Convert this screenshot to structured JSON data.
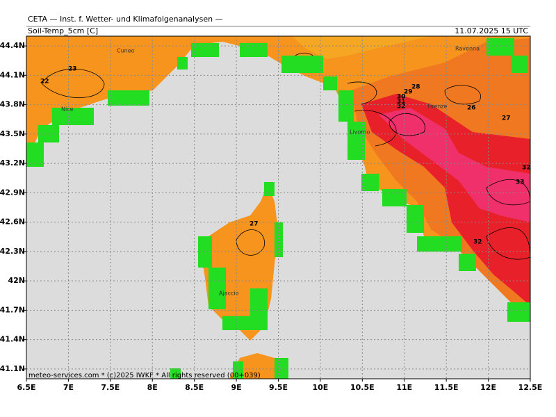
{
  "header": {
    "institute": "CETA — Inst. f. Wetter- und Klimafolgenanalysen —",
    "field": "Soil-Temp_5cm [C]",
    "valid_time": "11.07.2025 15 UTC"
  },
  "map": {
    "xlim": [
      6.5,
      12.5
    ],
    "ylim": [
      41.0,
      44.5
    ],
    "x_ticks": [
      {
        "value": 6.5,
        "label": "6.5E"
      },
      {
        "value": 7,
        "label": "7E"
      },
      {
        "value": 7.5,
        "label": "7.5E"
      },
      {
        "value": 8,
        "label": "8E"
      },
      {
        "value": 8.5,
        "label": "8.5E"
      },
      {
        "value": 9,
        "label": "9E"
      },
      {
        "value": 9.5,
        "label": "9.5E"
      },
      {
        "value": 10,
        "label": "10E"
      },
      {
        "value": 10.5,
        "label": "10.5E"
      },
      {
        "value": 11,
        "label": "11E"
      },
      {
        "value": 11.5,
        "label": "11.5E"
      },
      {
        "value": 12,
        "label": "12E"
      },
      {
        "value": 12.5,
        "label": "12.5E"
      }
    ],
    "y_ticks": [
      {
        "value": 41.1,
        "label": "41.1N"
      },
      {
        "value": 41.4,
        "label": "41.4N"
      },
      {
        "value": 41.7,
        "label": "41.7N"
      },
      {
        "value": 42,
        "label": "42N"
      },
      {
        "value": 42.3,
        "label": "42.3N"
      },
      {
        "value": 42.6,
        "label": "42.6N"
      },
      {
        "value": 42.9,
        "label": "42.9N"
      },
      {
        "value": 43.2,
        "label": "43.2N"
      },
      {
        "value": 43.5,
        "label": "43.5N"
      },
      {
        "value": 43.8,
        "label": "43.8N"
      },
      {
        "value": 44.1,
        "label": "44.1N"
      },
      {
        "value": 44.4,
        "label": "44.4N"
      }
    ],
    "cities": [
      "Cuneo",
      "Nice",
      "Livorno",
      "Firenze",
      "Ravenna",
      "Ajaccio"
    ],
    "contour_labels": [
      22,
      23,
      28,
      29,
      30,
      31,
      32,
      26,
      27,
      32,
      33,
      32,
      27
    ]
  },
  "footer": "meteo-services.com * (c)2025 IWKF * All rights reserved (00+039)"
}
